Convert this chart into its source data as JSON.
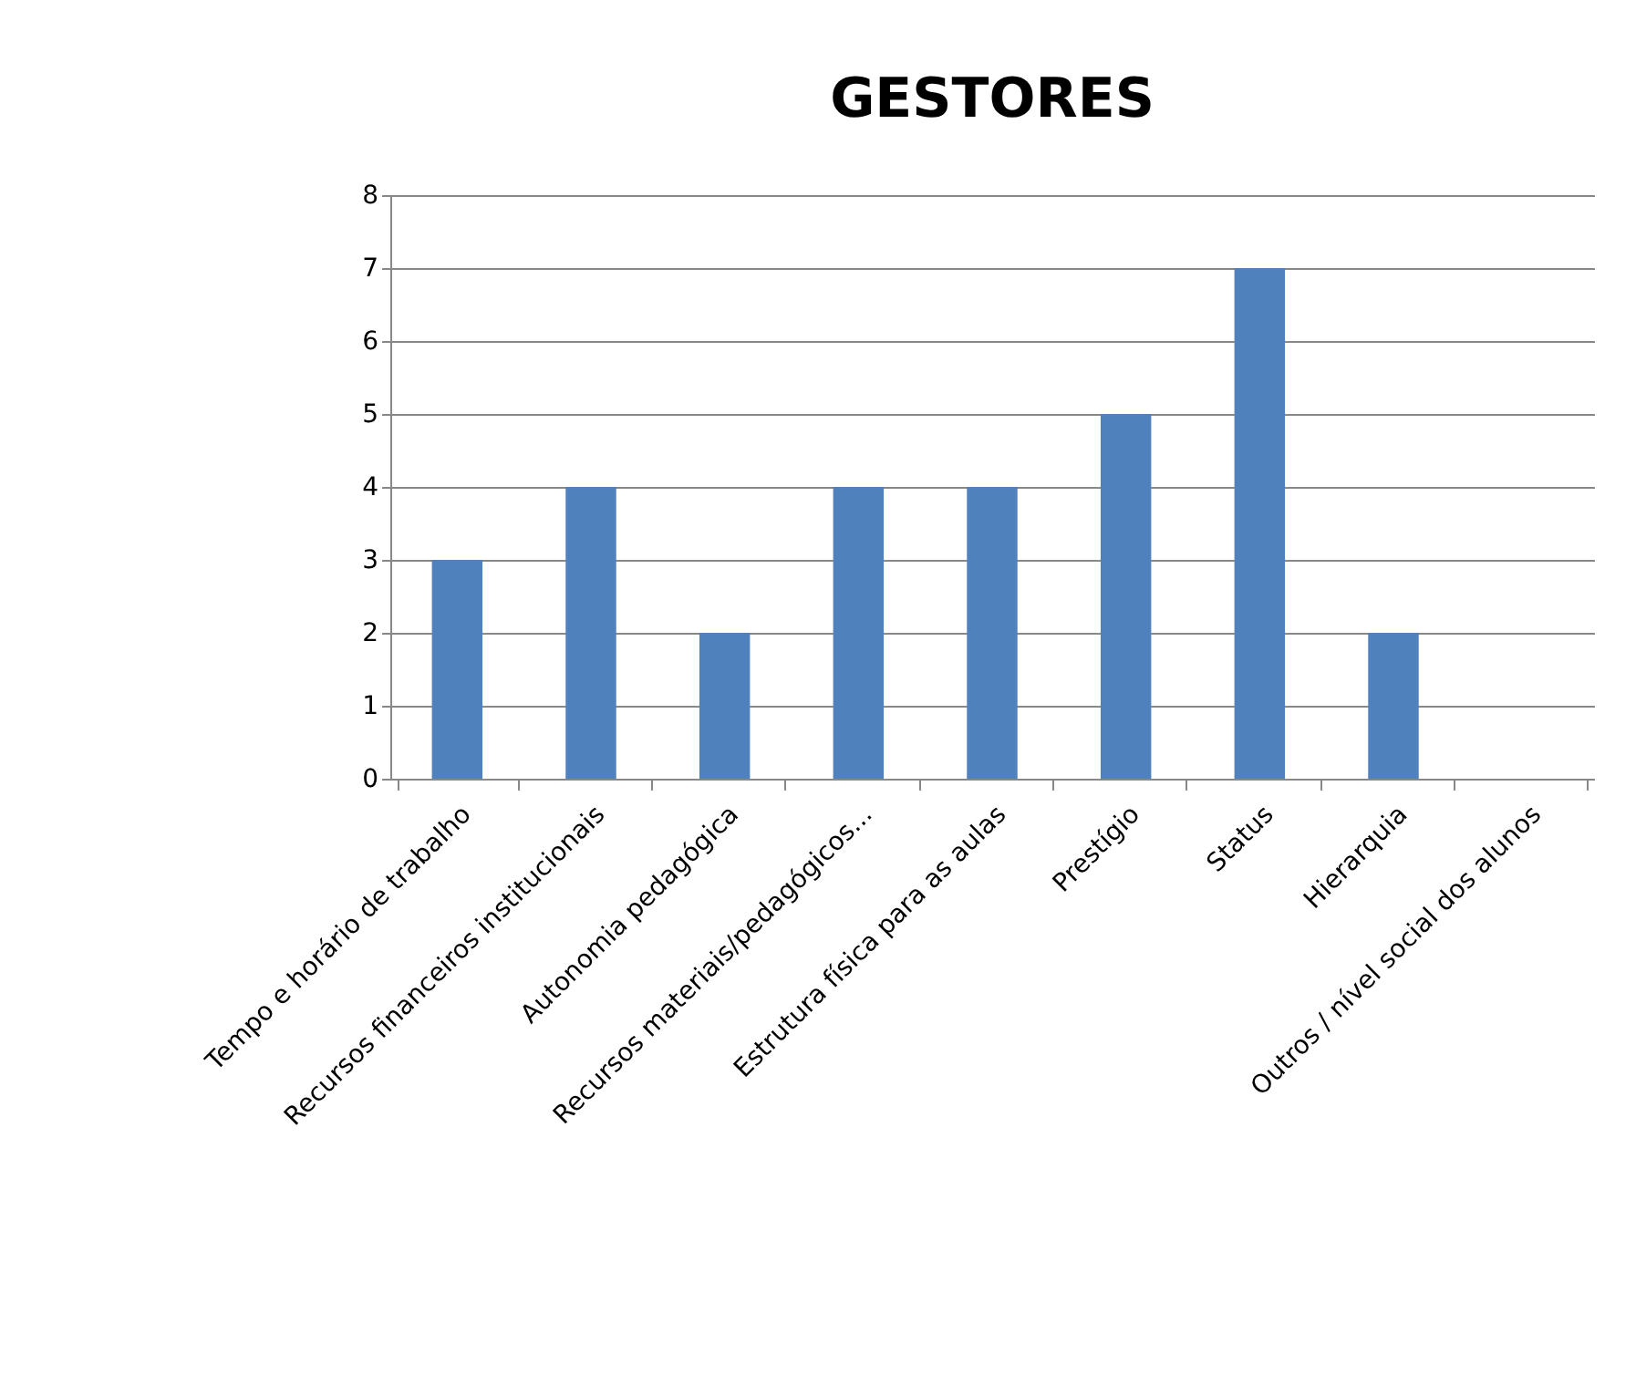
{
  "chart_data": {
    "type": "bar",
    "title": "GESTORES",
    "categories": [
      "Tempo e horário de trabalho",
      "Recursos financeiros institucionais",
      "Autonomia pedagógica",
      "Recursos materiais/pedagógicos...",
      "Estrutura física para as aulas",
      "Prestígio",
      "Status",
      "Hierarquia",
      "Outros / nível social dos alunos"
    ],
    "values": [
      3,
      4,
      2,
      4,
      4,
      5,
      7,
      2,
      0
    ],
    "color": "#4f81bd",
    "ylim": [
      0,
      8
    ],
    "yticks": [
      0,
      1,
      2,
      3,
      4,
      5,
      6,
      7,
      8
    ],
    "grid": "y"
  }
}
